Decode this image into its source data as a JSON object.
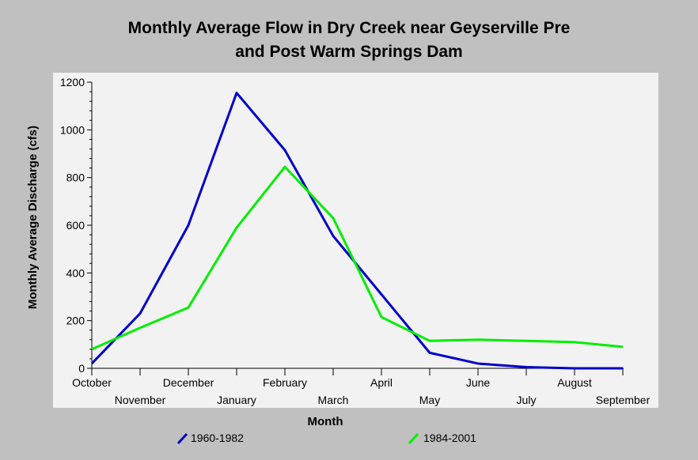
{
  "chart_data": {
    "type": "line",
    "title": [
      "Monthly Average Flow in Dry Creek near Geyserville Pre",
      "and Post Warm Springs Dam"
    ],
    "xlabel": "Month",
    "ylabel": "Monthly Average Discharge (cfs)",
    "categories": [
      "October",
      "November",
      "December",
      "January",
      "February",
      "March",
      "April",
      "May",
      "June",
      "July",
      "August",
      "September"
    ],
    "ylim": [
      0,
      1200
    ],
    "yticks": [
      "0",
      "200",
      "400",
      "600",
      "800",
      "1000",
      "1200"
    ],
    "grid": false,
    "legend_position": "bottom",
    "series": [
      {
        "name": "1960-1982",
        "color": "#0000cc",
        "values": [
          20,
          230,
          600,
          1155,
          915,
          555,
          310,
          65,
          20,
          5,
          0,
          0
        ]
      },
      {
        "name": "1984-2001",
        "color": "#00ee00",
        "values": [
          80,
          170,
          255,
          590,
          845,
          630,
          215,
          115,
          120,
          115,
          110,
          90
        ]
      }
    ]
  }
}
